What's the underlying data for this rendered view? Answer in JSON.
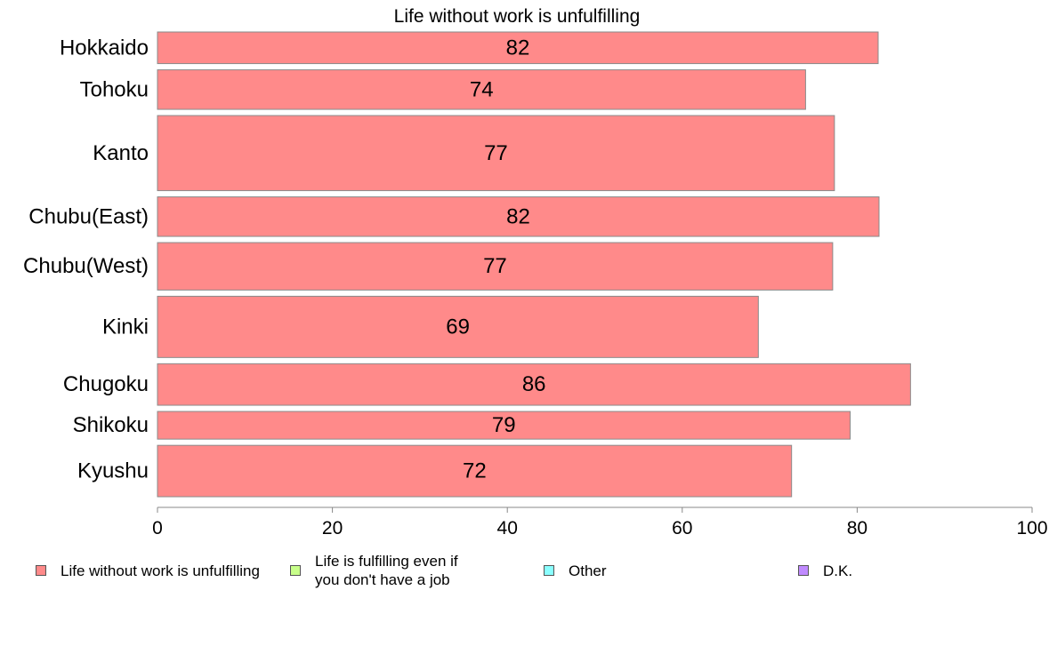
{
  "chart_data": {
    "type": "bar",
    "orientation": "horizontal",
    "title": "Life without work is unfulfilling",
    "categories": [
      "Hokkaido",
      "Tohoku",
      "Kanto",
      "Chubu(East)",
      "Chubu(West)",
      "Kinki",
      "Chugoku",
      "Shikoku",
      "Kyushu"
    ],
    "series": [
      {
        "name": "Life without work is unfulfilling",
        "values": [
          82,
          74,
          77,
          82,
          77,
          69,
          86,
          79,
          72
        ],
        "plotted_values": [
          82.4,
          74.1,
          77.4,
          82.5,
          77.2,
          68.7,
          86.1,
          79.2,
          72.5
        ],
        "color": "#ff8a8a"
      }
    ],
    "bar_relative_widths": [
      0.8,
      1.0,
      1.9,
      1.0,
      1.2,
      1.55,
      1.05,
      0.7,
      1.3
    ],
    "xlim": [
      0,
      100
    ],
    "x_ticks": [
      0,
      20,
      40,
      60,
      80,
      100
    ],
    "xlabel": "",
    "ylabel": "",
    "grid": false,
    "legend_position": "bottom",
    "legend": [
      {
        "label": "Life without work is unfulfilling",
        "color": "#ff8a8a"
      },
      {
        "label": "Life is fulfilling even if you don't have a job",
        "color": "#c8ff8a"
      },
      {
        "label": "Other",
        "color": "#8affff"
      },
      {
        "label": "D.K.",
        "color": "#c08aff"
      }
    ]
  }
}
